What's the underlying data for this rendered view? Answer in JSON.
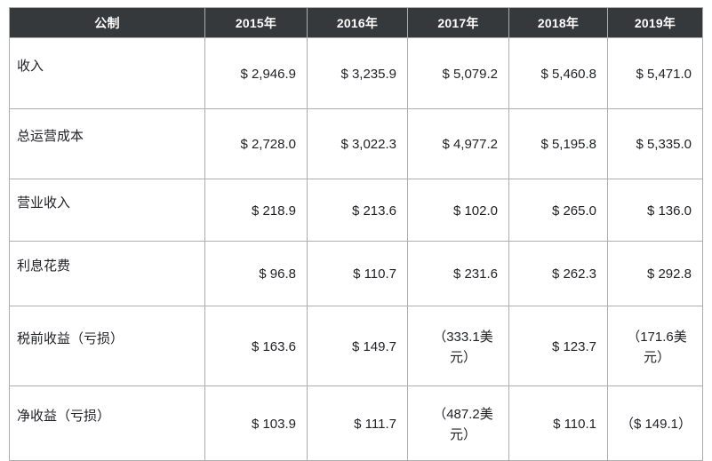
{
  "colors": {
    "header_bg": "#36393c",
    "header_text": "#ffffff",
    "body_text": "#202124",
    "border": "#adadad"
  },
  "chart_data": {
    "type": "table",
    "columns": [
      "公制",
      "2015年",
      "2016年",
      "2017年",
      "2018年",
      "2019年"
    ],
    "rows": [
      {
        "label": "收入",
        "values": [
          "$ 2,946.9",
          "$ 3,235.9",
          "$ 5,079.2",
          "$ 5,460.8",
          "$ 5,471.0"
        ]
      },
      {
        "label": "总运营成本",
        "values": [
          "$ 2,728.0",
          "$ 3,022.3",
          "$ 4,977.2",
          "$ 5,195.8",
          "$ 5,335.0"
        ]
      },
      {
        "label": "营业收入",
        "values": [
          "$ 218.9",
          "$ 213.6",
          "$ 102.0",
          "$ 265.0",
          "$ 136.0"
        ]
      },
      {
        "label": "利息花费",
        "values": [
          "$ 96.8",
          "$ 110.7",
          "$ 231.6",
          "$ 262.3",
          "$ 292.8"
        ]
      },
      {
        "label": "税前收益（亏损）",
        "values": [
          "$ 163.6",
          "$ 149.7",
          "（333.1美元）",
          "$ 123.7",
          "（171.6美元）"
        ]
      },
      {
        "label": "净收益（亏损）",
        "values": [
          "$ 103.9",
          "$ 111.7",
          "（487.2美元）",
          "$ 110.1",
          "（$ 149.1）"
        ]
      }
    ]
  }
}
